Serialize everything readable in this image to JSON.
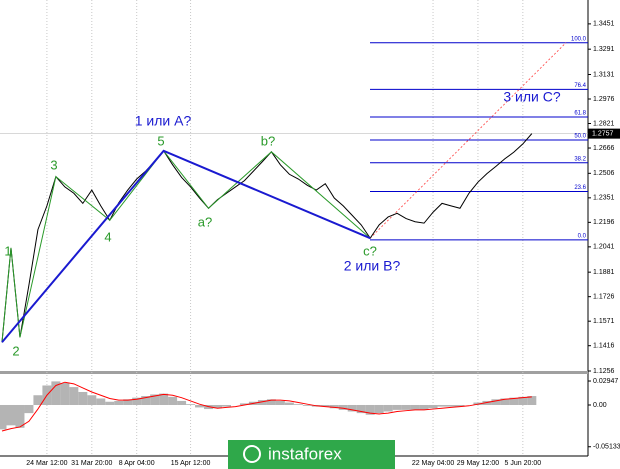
{
  "chart_data": {
    "type": "line",
    "categories": [
      null,
      null,
      null,
      null,
      null,
      "24 Mar 12:00",
      null,
      null,
      null,
      null,
      "31 Mar 20:00",
      null,
      null,
      null,
      null,
      "8 Apr 04:00",
      null,
      null,
      null,
      null,
      null,
      "15 Apr 12:00",
      null,
      null,
      null,
      null,
      null,
      null,
      null,
      null,
      null,
      null,
      null,
      null,
      null,
      null,
      null,
      null,
      null,
      null,
      null,
      null,
      null,
      null,
      null,
      null,
      null,
      null,
      "22 May 04:00",
      null,
      null,
      null,
      null,
      "29 May 12:00",
      null,
      null,
      null,
      null,
      "5 Jun 20:00",
      null
    ],
    "series": [
      {
        "color": "#000000",
        "values": [
          1.1438,
          1.2034,
          1.1469,
          1.18,
          1.215,
          1.23,
          1.2485,
          1.242,
          1.238,
          1.2316,
          1.24,
          1.23,
          1.2209,
          1.232,
          1.24,
          1.247,
          1.252,
          1.258,
          1.2648,
          1.256,
          1.248,
          1.242,
          1.235,
          1.2285,
          1.234,
          1.238,
          1.242,
          1.246,
          1.252,
          1.258,
          1.2642,
          1.256,
          1.25,
          1.247,
          1.243,
          1.24,
          1.244,
          1.235,
          1.23,
          1.224,
          1.218,
          1.2096,
          1.218,
          1.223,
          1.2253,
          1.222,
          1.22,
          1.2191,
          1.226,
          1.2316,
          1.23,
          1.2285,
          1.238,
          1.245,
          1.2504,
          1.255,
          1.2598,
          1.264,
          1.2692,
          1.2757
        ]
      }
    ],
    "ylim": [
      1.1256,
      1.3602
    ],
    "yticks": [
      1.1256,
      1.1416,
      1.1571,
      1.1726,
      1.1881,
      1.2041,
      1.2196,
      1.2351,
      1.2506,
      1.2666,
      1.2821,
      1.2976,
      1.3131,
      1.3291,
      1.3451
    ],
    "current_price": 1.2757,
    "fib_levels": [
      {
        "label": "0.0",
        "price": 1.2085
      },
      {
        "label": "23.6",
        "price": 1.2391
      },
      {
        "label": "38.2",
        "price": 1.2573
      },
      {
        "label": "50.0",
        "price": 1.2717
      },
      {
        "label": "61.8",
        "price": 1.2862
      },
      {
        "label": "76.4",
        "price": 1.3037
      },
      {
        "label": "100.0",
        "price": 1.3332
      }
    ],
    "annotations": [
      "1",
      "2",
      "3",
      "4",
      "5",
      "a?",
      "b?",
      "c?",
      "1 или A?",
      "2 или B?",
      "3 или C?"
    ],
    "oscillator": {
      "ylim": [
        -0.0627,
        0.0381
      ],
      "yticks": [
        0.02947,
        {
          "value": 0,
          "label": "0.00"
        },
        -0.05133
      ],
      "histogram": [
        -0.03,
        -0.025,
        -0.028,
        -0.01,
        0.012,
        0.024,
        0.029,
        0.027,
        0.022,
        0.016,
        0.012,
        0.008,
        0.004,
        0.005,
        0.007,
        0.009,
        0.011,
        0.013,
        0.014,
        0.01,
        0.005,
        0.001,
        -0.003,
        -0.005,
        -0.004,
        -0.002,
        0,
        0.002,
        0.004,
        0.006,
        0.007,
        0.005,
        0.003,
        0.001,
        -0.001,
        -0.002,
        -0.002,
        -0.004,
        -0.006,
        -0.008,
        -0.01,
        -0.012,
        -0.01,
        -0.008,
        -0.006,
        -0.006,
        -0.006,
        -0.006,
        -0.004,
        -0.002,
        -0.002,
        -0.002,
        0,
        0.003,
        0.005,
        0.007,
        0.008,
        0.009,
        0.01,
        0.011
      ],
      "signal": [
        -0.032,
        -0.029,
        -0.027,
        -0.02,
        -0.005,
        0.012,
        0.024,
        0.028,
        0.026,
        0.021,
        0.016,
        0.012,
        0.008,
        0.006,
        0.006,
        0.007,
        0.009,
        0.011,
        0.013,
        0.012,
        0.009,
        0.005,
        0.001,
        -0.002,
        -0.004,
        -0.003,
        -0.002,
        0,
        0.002,
        0.004,
        0.006,
        0.006,
        0.005,
        0.003,
        0.001,
        -0.001,
        -0.002,
        -0.003,
        -0.004,
        -0.006,
        -0.008,
        -0.01,
        -0.011,
        -0.01,
        -0.008,
        -0.007,
        -0.006,
        -0.006,
        -0.005,
        -0.004,
        -0.003,
        -0.002,
        -0.001,
        0.001,
        0.003,
        0.005,
        0.007,
        0.008,
        0.009,
        0.01
      ]
    },
    "watermark": "instaforex"
  }
}
